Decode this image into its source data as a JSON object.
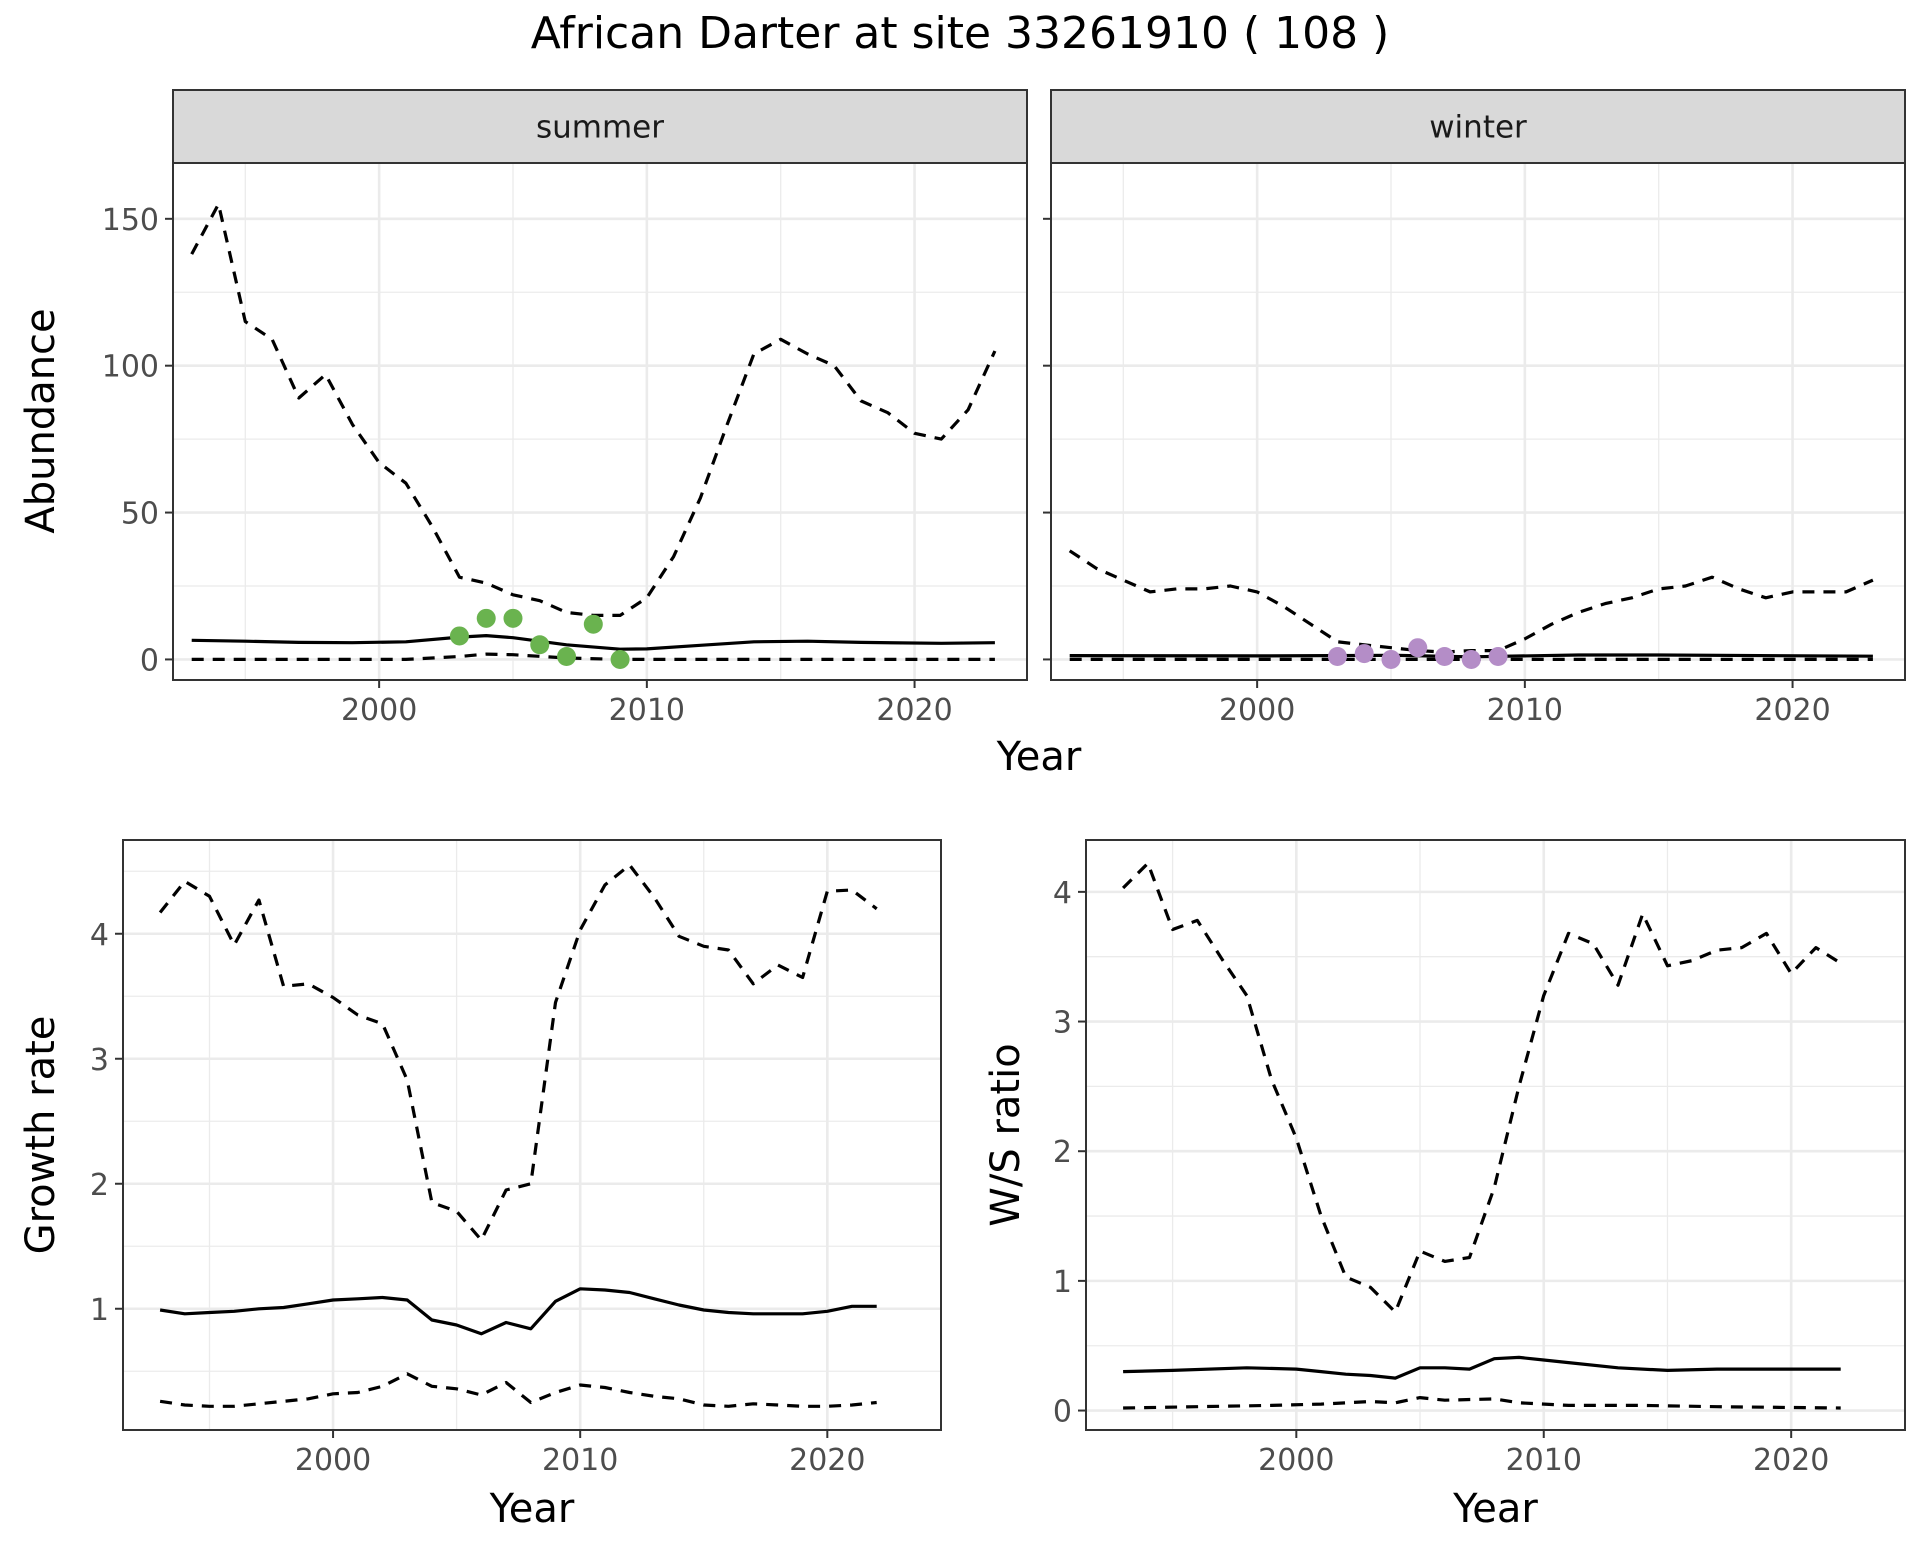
{
  "title": "African Darter at site 33261910 ( 108 )",
  "colors": {
    "summer_points": "#6ab34f",
    "winter_points": "#b48dc7",
    "lines": "#000000",
    "strip_bg": "#d9d9d9",
    "grid": "#ebebeb"
  },
  "chart_data": [
    {
      "type": "line",
      "panel": "summer",
      "strip": "summer",
      "xlabel": "Year",
      "ylabel": "Abundance",
      "xlim": [
        1992.3,
        2024.2
      ],
      "ylim": [
        -7,
        169
      ],
      "xticks": [
        "2000",
        "2010",
        "2020"
      ],
      "yticks": [
        "0",
        "50",
        "100",
        "150"
      ],
      "grid": true,
      "series": [
        {
          "style": "solid",
          "x": [
            1993,
            1995,
            1997,
            1999,
            2001,
            2003,
            2004,
            2005,
            2007,
            2009,
            2010,
            2012,
            2014,
            2016,
            2018,
            2021,
            2023
          ],
          "y": [
            6.5,
            6.2,
            5.8,
            5.7,
            6,
            7.6,
            8.1,
            7.4,
            5,
            3.5,
            3.6,
            4.8,
            6,
            6.2,
            5.8,
            5.5,
            5.7
          ]
        },
        {
          "style": "dashed",
          "x": [
            1993,
            1994,
            1995,
            1996,
            1997,
            1998,
            1999,
            2000,
            2001,
            2002,
            2003,
            2004,
            2005,
            2006,
            2007,
            2008,
            2009,
            2010,
            2011,
            2012,
            2013,
            2014,
            2015,
            2016,
            2017,
            2018,
            2019,
            2020,
            2021,
            2022,
            2023
          ],
          "y": [
            138,
            155,
            115,
            109,
            89,
            97,
            80,
            67,
            60,
            45,
            28,
            26,
            22,
            20,
            16,
            15,
            15,
            21,
            35,
            55,
            80,
            104,
            109,
            104,
            100,
            88,
            84,
            77,
            75,
            85,
            105
          ]
        },
        {
          "style": "dashed",
          "x": [
            1993,
            2001,
            2003,
            2004,
            2005,
            2007,
            2009,
            2012,
            2023
          ],
          "y": [
            0,
            0,
            1,
            1.8,
            1.6,
            0.5,
            0,
            0,
            0
          ]
        }
      ],
      "points": {
        "x": [
          2003,
          2004,
          2005,
          2006,
          2007,
          2008,
          2009
        ],
        "y": [
          8,
          14,
          14,
          5,
          1,
          12,
          0
        ]
      }
    },
    {
      "type": "line",
      "panel": "winter",
      "strip": "winter",
      "xlabel": "Year",
      "ylabel": "Abundance",
      "xlim": [
        1992.3,
        2024.2
      ],
      "ylim": [
        -7,
        169
      ],
      "xticks": [
        "2000",
        "2010",
        "2020"
      ],
      "yticks": [],
      "grid": true,
      "series": [
        {
          "style": "solid",
          "x": [
            1993,
            2000,
            2005,
            2008,
            2012,
            2015,
            2023
          ],
          "y": [
            1.3,
            1.2,
            1.4,
            0.9,
            1.5,
            1.5,
            1.1
          ]
        },
        {
          "style": "dashed",
          "x": [
            1993,
            1994,
            1995,
            1996,
            1997,
            1998,
            1999,
            2000,
            2001,
            2002,
            2003,
            2004,
            2005,
            2006,
            2007,
            2008,
            2009,
            2010,
            2011,
            2012,
            2013,
            2014,
            2015,
            2016,
            2017,
            2018,
            2019,
            2020,
            2021,
            2022,
            2023
          ],
          "y": [
            37,
            31,
            27,
            23,
            24,
            24,
            25,
            23,
            18,
            12,
            6,
            5,
            4,
            3,
            2.5,
            3,
            3,
            7,
            12,
            16,
            19,
            21,
            24,
            25,
            28,
            24,
            21,
            23,
            23,
            23,
            27
          ]
        },
        {
          "style": "dashed",
          "x": [
            1993,
            2023
          ],
          "y": [
            0,
            0
          ]
        }
      ],
      "points": {
        "x": [
          2003,
          2004,
          2005,
          2006,
          2007,
          2008,
          2009
        ],
        "y": [
          1,
          2,
          0,
          4,
          1,
          0,
          1
        ]
      }
    },
    {
      "type": "line",
      "panel": "growth",
      "xlabel": "Year",
      "ylabel": "Growth rate",
      "xlim": [
        1991.5,
        2024.6
      ],
      "ylim": [
        0.03,
        4.75
      ],
      "xticks": [
        "2000",
        "2010",
        "2020"
      ],
      "yticks": [
        "1",
        "2",
        "3",
        "4"
      ],
      "grid": true,
      "series": [
        {
          "style": "solid",
          "x": [
            1993,
            1994,
            1995,
            1996,
            1997,
            1998,
            1999,
            2000,
            2001,
            2002,
            2003,
            2004,
            2005,
            2006,
            2007,
            2008,
            2009,
            2010,
            2011,
            2012,
            2013,
            2014,
            2015,
            2016,
            2017,
            2018,
            2019,
            2020,
            2021,
            2022
          ],
          "y": [
            0.99,
            0.96,
            0.97,
            0.98,
            1.0,
            1.01,
            1.04,
            1.07,
            1.08,
            1.09,
            1.07,
            0.91,
            0.87,
            0.8,
            0.89,
            0.84,
            1.06,
            1.16,
            1.15,
            1.13,
            1.08,
            1.03,
            0.99,
            0.97,
            0.96,
            0.96,
            0.96,
            0.98,
            1.02,
            1.02
          ]
        },
        {
          "style": "dashed",
          "x": [
            1993,
            1994,
            1995,
            1996,
            1997,
            1998,
            1999,
            2000,
            2001,
            2002,
            2003,
            2004,
            2005,
            2006,
            2007,
            2008,
            2009,
            2010,
            2011,
            2012,
            2013,
            2014,
            2015,
            2016,
            2017,
            2018,
            2019,
            2020,
            2021,
            2022
          ],
          "y": [
            4.17,
            4.42,
            4.3,
            3.91,
            4.27,
            3.58,
            3.6,
            3.49,
            3.35,
            3.28,
            2.83,
            1.85,
            1.78,
            1.55,
            1.95,
            2.0,
            3.45,
            4.03,
            4.39,
            4.55,
            4.29,
            3.98,
            3.9,
            3.87,
            3.6,
            3.75,
            3.65,
            4.34,
            4.35,
            4.2
          ]
        },
        {
          "style": "dashed",
          "x": [
            1993,
            1994,
            1995,
            1996,
            1997,
            1998,
            1999,
            2000,
            2001,
            2002,
            2003,
            2004,
            2005,
            2006,
            2007,
            2008,
            2009,
            2010,
            2011,
            2012,
            2013,
            2014,
            2015,
            2016,
            2017,
            2018,
            2019,
            2020,
            2021,
            2022
          ],
          "y": [
            0.26,
            0.23,
            0.22,
            0.22,
            0.24,
            0.26,
            0.28,
            0.32,
            0.33,
            0.38,
            0.48,
            0.38,
            0.36,
            0.31,
            0.41,
            0.25,
            0.33,
            0.39,
            0.37,
            0.33,
            0.3,
            0.28,
            0.23,
            0.22,
            0.24,
            0.23,
            0.22,
            0.22,
            0.23,
            0.25
          ]
        }
      ]
    },
    {
      "type": "line",
      "panel": "ws",
      "xlabel": "Year",
      "ylabel": "W/S ratio",
      "xlim": [
        1991.5,
        2024.6
      ],
      "ylim": [
        -0.15,
        4.4
      ],
      "xticks": [
        "2000",
        "2010",
        "2020"
      ],
      "yticks": [
        "0",
        "1",
        "2",
        "3",
        "4"
      ],
      "grid": true,
      "series": [
        {
          "style": "solid",
          "x": [
            1993,
            1995,
            1998,
            2000,
            2001,
            2002,
            2003,
            2004,
            2005,
            2006,
            2007,
            2008,
            2009,
            2010,
            2011,
            2013,
            2015,
            2017,
            2020,
            2022
          ],
          "y": [
            0.3,
            0.31,
            0.33,
            0.32,
            0.3,
            0.28,
            0.27,
            0.25,
            0.33,
            0.33,
            0.32,
            0.4,
            0.41,
            0.39,
            0.37,
            0.33,
            0.31,
            0.32,
            0.32,
            0.32
          ]
        },
        {
          "style": "dashed",
          "x": [
            1993,
            1994,
            1995,
            1996,
            1997,
            1998,
            1999,
            2000,
            2001,
            2002,
            2003,
            2004,
            2005,
            2006,
            2007,
            2008,
            2009,
            2010,
            2011,
            2012,
            2013,
            2014,
            2015,
            2016,
            2017,
            2018,
            2019,
            2020,
            2021,
            2022
          ],
          "y": [
            4.03,
            4.22,
            3.71,
            3.78,
            3.48,
            3.2,
            2.55,
            2.1,
            1.5,
            1.03,
            0.95,
            0.76,
            1.23,
            1.15,
            1.18,
            1.72,
            2.5,
            3.2,
            3.68,
            3.6,
            3.28,
            3.83,
            3.43,
            3.47,
            3.55,
            3.57,
            3.68,
            3.37,
            3.57,
            3.45
          ]
        },
        {
          "style": "dashed",
          "x": [
            1993,
            1996,
            1999,
            2001,
            2003,
            2004,
            2005,
            2006,
            2008,
            2009,
            2011,
            2014,
            2017,
            2022
          ],
          "y": [
            0.02,
            0.03,
            0.04,
            0.05,
            0.07,
            0.06,
            0.1,
            0.08,
            0.09,
            0.06,
            0.04,
            0.04,
            0.03,
            0.02
          ]
        }
      ]
    }
  ]
}
